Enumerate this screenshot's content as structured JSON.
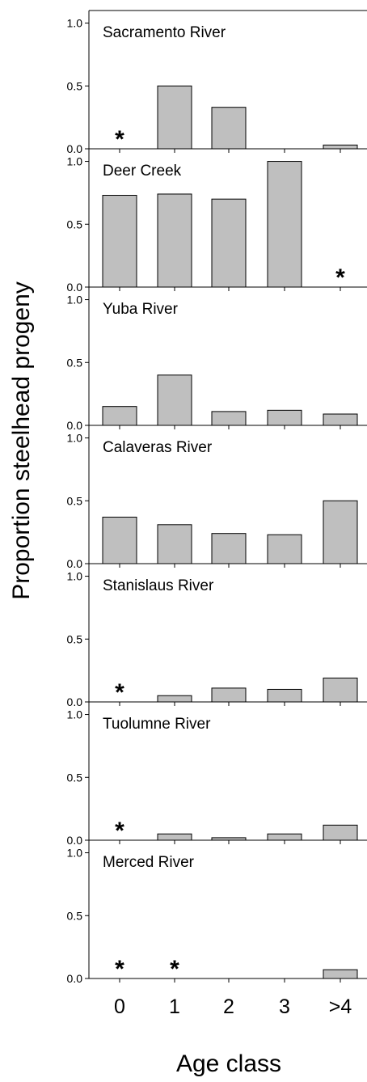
{
  "figure": {
    "ylabel": "Proportion steelhead progeny",
    "xlabel": "Age class",
    "categories": [
      "0",
      "1",
      "2",
      "3",
      ">4"
    ],
    "yticks": [
      "0.0",
      "0.5",
      "1.0"
    ],
    "bar_color": "#bfbfbf",
    "no_data_marker": "*"
  },
  "chart_data": [
    {
      "type": "bar",
      "title": "Sacramento River",
      "categories": [
        "0",
        "1",
        "2",
        "3",
        ">4"
      ],
      "values": [
        null,
        0.5,
        0.33,
        0,
        0.03
      ],
      "ylim": [
        0,
        1.1
      ],
      "no_data": [
        0
      ]
    },
    {
      "type": "bar",
      "title": "Deer Creek",
      "categories": [
        "0",
        "1",
        "2",
        "3",
        ">4"
      ],
      "values": [
        0.73,
        0.74,
        0.7,
        1.0,
        null
      ],
      "ylim": [
        0,
        1.1
      ],
      "no_data": [
        4
      ]
    },
    {
      "type": "bar",
      "title": "Yuba River",
      "categories": [
        "0",
        "1",
        "2",
        "3",
        ">4"
      ],
      "values": [
        0.15,
        0.4,
        0.11,
        0.12,
        0.09
      ],
      "ylim": [
        0,
        1.1
      ],
      "no_data": []
    },
    {
      "type": "bar",
      "title": "Calaveras River",
      "categories": [
        "0",
        "1",
        "2",
        "3",
        ">4"
      ],
      "values": [
        0.37,
        0.31,
        0.24,
        0.23,
        0.5
      ],
      "ylim": [
        0,
        1.1
      ],
      "no_data": []
    },
    {
      "type": "bar",
      "title": "Stanislaus River",
      "categories": [
        "0",
        "1",
        "2",
        "3",
        ">4"
      ],
      "values": [
        null,
        0.05,
        0.11,
        0.1,
        0.19
      ],
      "ylim": [
        0,
        1.1
      ],
      "no_data": [
        0
      ]
    },
    {
      "type": "bar",
      "title": "Tuolumne River",
      "categories": [
        "0",
        "1",
        "2",
        "3",
        ">4"
      ],
      "values": [
        null,
        0.05,
        0.02,
        0.05,
        0.12
      ],
      "ylim": [
        0,
        1.1
      ],
      "no_data": [
        0
      ]
    },
    {
      "type": "bar",
      "title": "Merced River",
      "categories": [
        "0",
        "1",
        "2",
        "3",
        ">4"
      ],
      "values": [
        null,
        null,
        0,
        0,
        0.07
      ],
      "ylim": [
        0,
        1.1
      ],
      "no_data": [
        0,
        1
      ]
    }
  ]
}
